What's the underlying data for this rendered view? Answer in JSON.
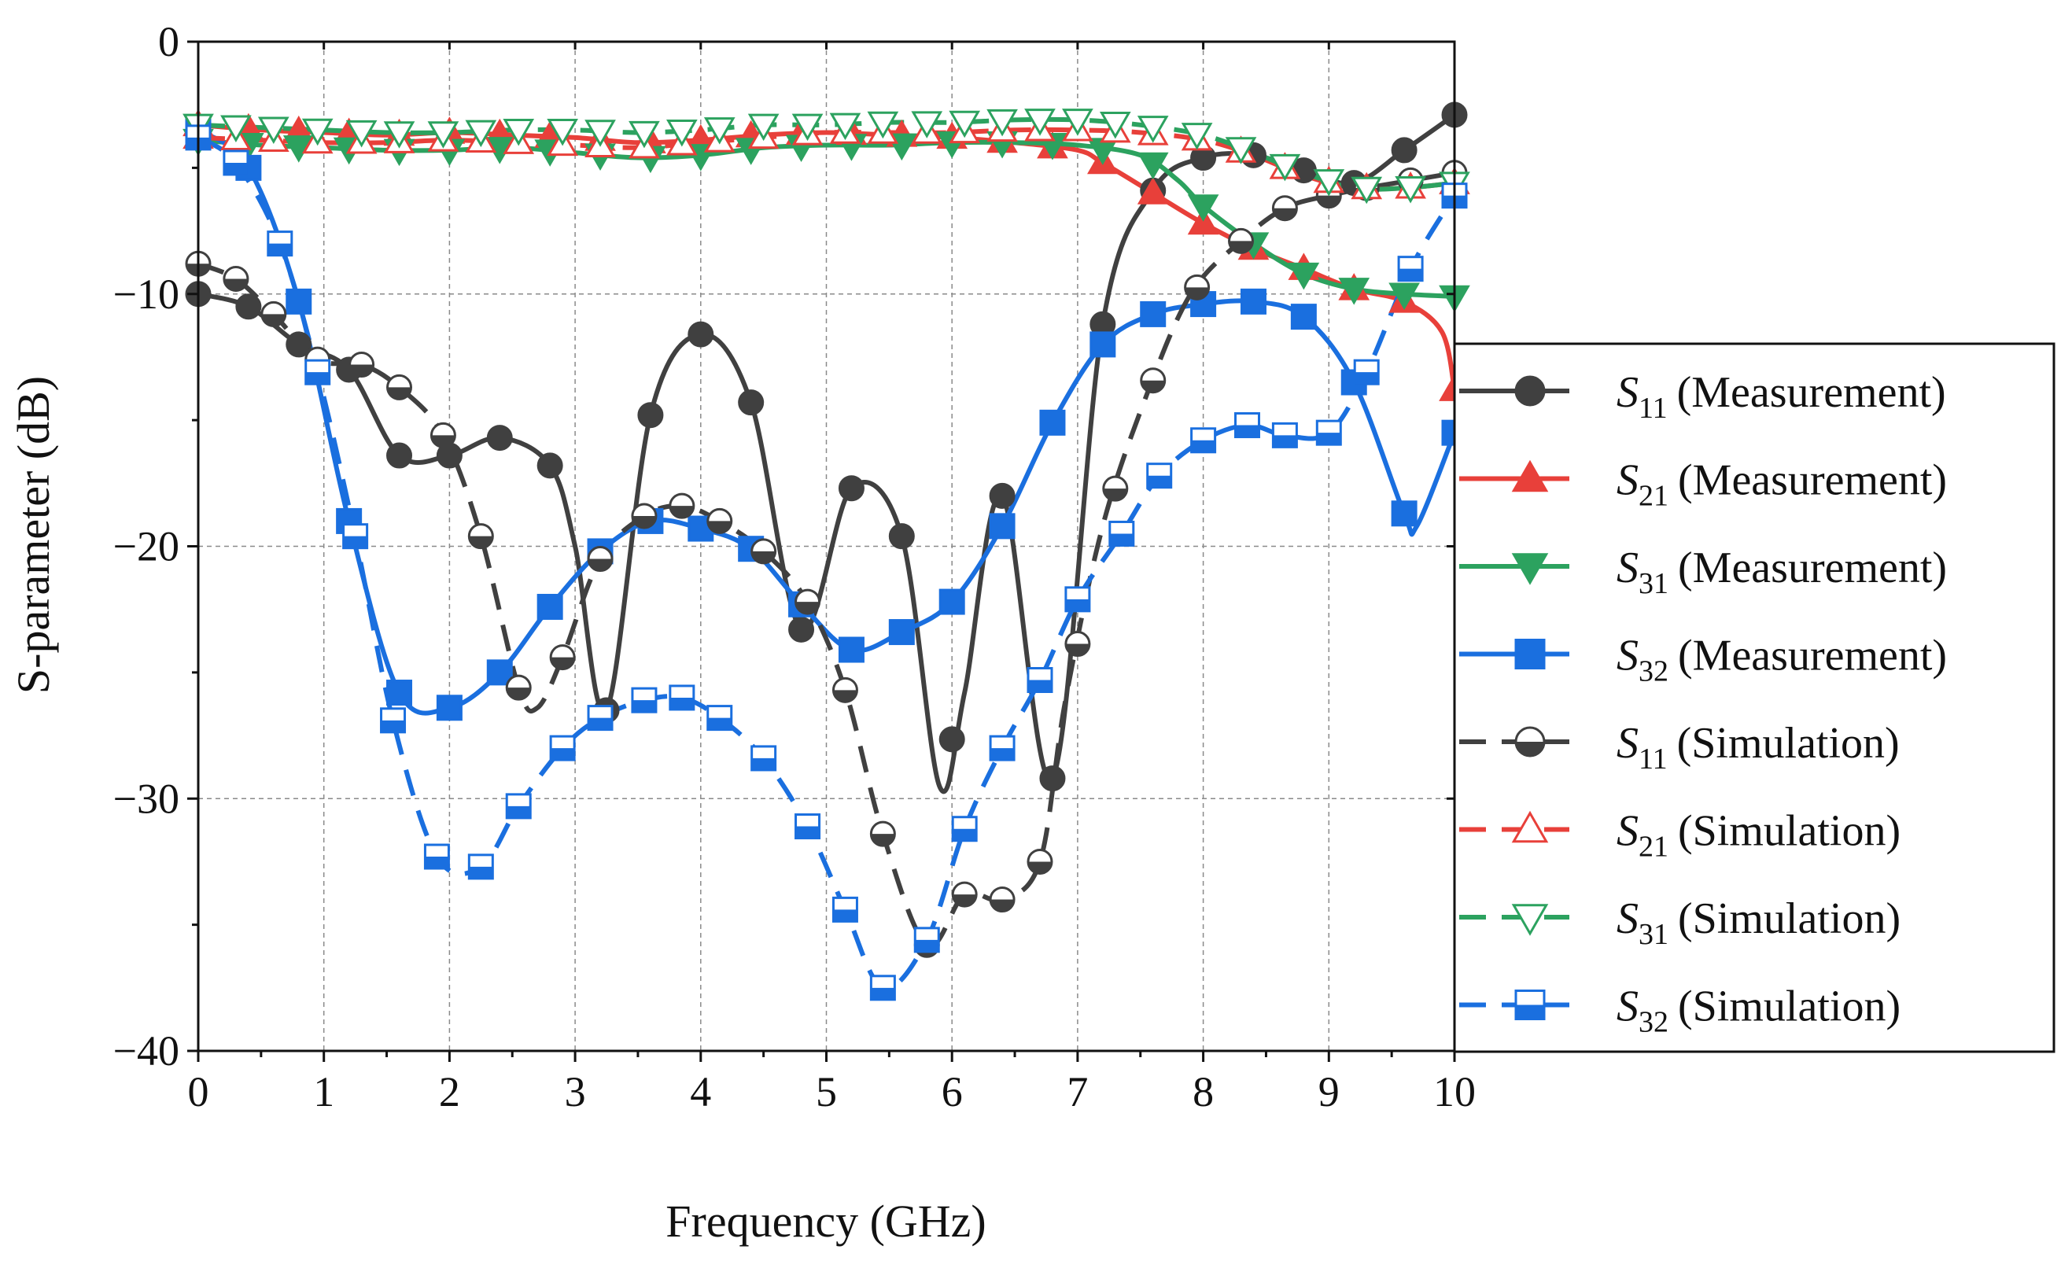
{
  "chart_data": {
    "type": "line",
    "title": "",
    "xlabel": "Frequency (GHz)",
    "ylabel": "S-parameter (dB)",
    "xlim": [
      0,
      10
    ],
    "ylim": [
      -40,
      0
    ],
    "xticks": [
      0,
      1,
      2,
      3,
      4,
      5,
      6,
      7,
      8,
      9,
      10
    ],
    "yticks": [
      0,
      -10,
      -20,
      -30,
      -40
    ],
    "xtick_labels": [
      "0",
      "1",
      "2",
      "3",
      "4",
      "5",
      "6",
      "7",
      "8",
      "9",
      "10"
    ],
    "ytick_labels": [
      "0",
      "−10",
      "−20",
      "−30",
      "−40"
    ],
    "grid": true,
    "legend_position": "right, outside plot area",
    "series": [
      {
        "name": "S11 (Measurement)",
        "sym": "S",
        "sub": "11",
        "kind": "(Measurement)",
        "color": "#404040",
        "dash": "solid",
        "marker": "circle",
        "fill": "full",
        "x": [
          0,
          0.4,
          0.8,
          1.2,
          1.6,
          2.0,
          2.4,
          2.8,
          3.0,
          3.25,
          3.6,
          4.0,
          4.4,
          4.8,
          5.2,
          5.6,
          5.9,
          6.1,
          6.4,
          6.8,
          7.2,
          7.6,
          8.0,
          8.4,
          8.8,
          9.2,
          9.6,
          10.0
        ],
        "y": [
          -10,
          -10.5,
          -12,
          -13,
          -16.4,
          -16.4,
          -15.7,
          -16.8,
          -20,
          -26.5,
          -14.8,
          -11.6,
          -14.3,
          -23.3,
          -17.7,
          -19.6,
          -29.5,
          -25.8,
          -18,
          -29.2,
          -11.2,
          -5.9,
          -4.6,
          -4.5,
          -5.1,
          -5.6,
          -4.3,
          -2.9
        ],
        "marker_x": [
          0,
          0.4,
          0.8,
          1.2,
          1.6,
          2.0,
          2.4,
          2.8,
          3.25,
          3.6,
          4.0,
          4.4,
          4.8,
          5.2,
          5.6,
          6.0,
          6.4,
          6.8,
          7.2,
          7.6,
          8.0,
          8.4,
          8.8,
          9.2,
          9.6,
          10.0
        ]
      },
      {
        "name": "S21 (Measurement)",
        "sym": "S",
        "sub": "21",
        "kind": "(Measurement)",
        "color": "#e8403a",
        "dash": "solid",
        "marker": "triangle-up",
        "fill": "full",
        "x": [
          0,
          0.5,
          1,
          1.5,
          2,
          2.5,
          3,
          3.5,
          4,
          4.5,
          5,
          5.5,
          6,
          6.5,
          7,
          7.2,
          7.6,
          8.0,
          8.4,
          8.8,
          9.2,
          9.6,
          9.9,
          10.0
        ],
        "y": [
          -3.3,
          -3.5,
          -3.6,
          -3.7,
          -3.6,
          -3.7,
          -3.8,
          -4.0,
          -3.9,
          -3.7,
          -3.6,
          -3.7,
          -3.8,
          -4.0,
          -4.3,
          -4.8,
          -6.0,
          -7.2,
          -8.2,
          -9.0,
          -9.8,
          -10.3,
          -11.5,
          -13.8
        ],
        "marker_x": [
          0,
          0.4,
          0.8,
          1.2,
          1.6,
          2.0,
          2.4,
          2.8,
          3.2,
          3.6,
          4.0,
          4.4,
          4.8,
          5.2,
          5.6,
          6.0,
          6.4,
          6.8,
          7.2,
          7.6,
          8.0,
          8.4,
          8.8,
          9.2,
          9.6,
          10.0
        ]
      },
      {
        "name": "S31 (Measurement)",
        "sym": "S",
        "sub": "31",
        "kind": "(Measurement)",
        "color": "#2ca25f",
        "dash": "solid",
        "marker": "triangle-down",
        "fill": "full",
        "x": [
          0,
          0.5,
          1,
          1.5,
          2,
          2.5,
          3,
          3.5,
          4,
          4.5,
          5,
          5.5,
          6,
          6.5,
          7,
          7.5,
          7.8,
          8.0,
          8.4,
          8.8,
          9.2,
          9.6,
          10.0
        ],
        "y": [
          -3.9,
          -4.1,
          -4.2,
          -4.3,
          -4.3,
          -4.2,
          -4.4,
          -4.6,
          -4.5,
          -4.2,
          -4.1,
          -4.1,
          -4.0,
          -4.0,
          -4.1,
          -4.5,
          -5.5,
          -6.5,
          -8.0,
          -9.2,
          -9.8,
          -10.0,
          -10.1
        ],
        "marker_x": [
          0,
          0.4,
          0.8,
          1.2,
          1.6,
          2.0,
          2.4,
          2.8,
          3.2,
          3.6,
          4.0,
          4.4,
          4.8,
          5.2,
          5.6,
          6.0,
          6.4,
          6.8,
          7.2,
          7.6,
          8.0,
          8.4,
          8.8,
          9.2,
          9.6,
          10.0
        ]
      },
      {
        "name": "S32 (Measurement)",
        "sym": "S",
        "sub": "32",
        "kind": "(Measurement)",
        "color": "#1a6fdf",
        "dash": "solid",
        "marker": "square",
        "fill": "full",
        "x": [
          0,
          0.4,
          0.8,
          1.2,
          1.6,
          2.0,
          2.4,
          2.8,
          3.2,
          3.6,
          4.0,
          4.4,
          4.8,
          5.2,
          5.6,
          6.0,
          6.4,
          6.8,
          7.2,
          7.6,
          8.0,
          8.4,
          8.8,
          9.2,
          9.6,
          9.7,
          10.0
        ],
        "y": [
          -3.5,
          -5,
          -10.3,
          -19,
          -25.8,
          -26.4,
          -25,
          -22.4,
          -20.2,
          -19,
          -19.3,
          -20.1,
          -22.3,
          -24.1,
          -23.4,
          -22.2,
          -19.2,
          -15.1,
          -12,
          -10.8,
          -10.4,
          -10.3,
          -10.9,
          -13.5,
          -18.7,
          -19.2,
          -15.5
        ],
        "marker_x": [
          0,
          0.4,
          0.8,
          1.2,
          1.6,
          2.0,
          2.4,
          2.8,
          3.2,
          3.6,
          4.0,
          4.4,
          4.8,
          5.2,
          5.6,
          6.0,
          6.4,
          6.8,
          7.2,
          7.6,
          8.0,
          8.4,
          8.8,
          9.2,
          9.6,
          10.0
        ]
      },
      {
        "name": "S11 (Simulation)",
        "sym": "S",
        "sub": "11",
        "kind": "(Simulation)",
        "color": "#404040",
        "dash": "dashed",
        "marker": "circle",
        "fill": "half",
        "x": [
          0,
          0.3,
          0.6,
          0.95,
          1.3,
          1.6,
          1.95,
          2.25,
          2.55,
          2.7,
          2.9,
          3.2,
          3.55,
          3.85,
          4.15,
          4.5,
          4.85,
          5.15,
          5.45,
          5.8,
          6.1,
          6.4,
          6.7,
          6.9,
          7.2,
          7.55,
          7.9,
          8.3,
          8.65,
          9.0,
          9.3,
          9.65,
          10.0
        ],
        "y": [
          -8.8,
          -9.4,
          -10.8,
          -12.6,
          -12.8,
          -13.7,
          -15.6,
          -19.6,
          -25.6,
          -26.4,
          -24.4,
          -20.5,
          -18.8,
          -18.4,
          -19,
          -20.2,
          -22.2,
          -25.7,
          -31.4,
          -35.8,
          -33.8,
          -34,
          -32.5,
          -26.2,
          -19.2,
          -14,
          -10,
          -7.9,
          -6.6,
          -6.1,
          -5.8,
          -5.5,
          -5.2
        ],
        "marker_x": [
          0,
          0.3,
          0.6,
          0.95,
          1.3,
          1.6,
          1.95,
          2.25,
          2.55,
          2.9,
          3.2,
          3.55,
          3.85,
          4.15,
          4.5,
          4.85,
          5.15,
          5.45,
          5.8,
          6.1,
          6.4,
          6.7,
          7.0,
          7.3,
          7.6,
          7.95,
          8.3,
          8.65,
          9.0,
          9.3,
          9.65,
          10.0
        ]
      },
      {
        "name": "S21 (Simulation)",
        "sym": "S",
        "sub": "21",
        "kind": "(Simulation)",
        "color": "#e8403a",
        "dash": "dashed",
        "marker": "triangle-up",
        "fill": "open",
        "x": [
          0,
          0.5,
          1,
          1.5,
          2,
          2.5,
          3,
          3.5,
          4,
          4.5,
          5,
          5.5,
          6,
          6.5,
          7,
          7.5,
          8.0,
          8.4,
          8.8,
          9.2,
          9.6,
          10.0
        ],
        "y": [
          -3.8,
          -3.9,
          -4.0,
          -4.0,
          -3.9,
          -4.0,
          -4.1,
          -4.2,
          -4.0,
          -3.8,
          -3.6,
          -3.6,
          -3.6,
          -3.5,
          -3.5,
          -3.6,
          -3.9,
          -4.5,
          -5.3,
          -5.8,
          -5.8,
          -5.6
        ],
        "marker_x": [
          0,
          0.3,
          0.6,
          0.95,
          1.3,
          1.6,
          1.95,
          2.25,
          2.55,
          2.9,
          3.2,
          3.55,
          3.85,
          4.15,
          4.5,
          4.85,
          5.15,
          5.45,
          5.8,
          6.1,
          6.4,
          6.7,
          7.0,
          7.3,
          7.6,
          7.95,
          8.3,
          8.65,
          9.0,
          9.3,
          9.65,
          10.0
        ]
      },
      {
        "name": "S31 (Simulation)",
        "sym": "S",
        "sub": "31",
        "kind": "(Simulation)",
        "color": "#2ca25f",
        "dash": "dashed",
        "marker": "triangle-down",
        "fill": "open",
        "x": [
          0,
          0.5,
          1,
          1.5,
          2,
          2.5,
          3,
          3.5,
          4,
          4.5,
          5,
          5.5,
          6,
          6.5,
          7,
          7.5,
          8.0,
          8.4,
          8.8,
          9.2,
          9.6,
          10.0
        ],
        "y": [
          -3.3,
          -3.4,
          -3.5,
          -3.6,
          -3.6,
          -3.5,
          -3.5,
          -3.6,
          -3.5,
          -3.3,
          -3.3,
          -3.2,
          -3.2,
          -3.1,
          -3.1,
          -3.3,
          -3.7,
          -4.4,
          -5.2,
          -5.8,
          -5.8,
          -5.6
        ],
        "marker_x": [
          0,
          0.3,
          0.6,
          0.95,
          1.3,
          1.6,
          1.95,
          2.25,
          2.55,
          2.9,
          3.2,
          3.55,
          3.85,
          4.15,
          4.5,
          4.85,
          5.15,
          5.45,
          5.8,
          6.1,
          6.4,
          6.7,
          7.0,
          7.3,
          7.6,
          7.95,
          8.3,
          8.65,
          9.0,
          9.3,
          9.65,
          10.0
        ]
      },
      {
        "name": "S32 (Simulation)",
        "sym": "S",
        "sub": "32",
        "kind": "(Simulation)",
        "color": "#1a6fdf",
        "dash": "dashed",
        "marker": "square",
        "fill": "half",
        "x": [
          0,
          0.3,
          0.65,
          0.95,
          1.25,
          1.55,
          1.9,
          2.25,
          2.55,
          2.9,
          3.2,
          3.55,
          3.85,
          4.15,
          4.5,
          4.85,
          5.15,
          5.45,
          5.8,
          6.1,
          6.4,
          6.7,
          7.0,
          7.35,
          7.65,
          8.0,
          8.35,
          8.65,
          9.0,
          9.3,
          9.65,
          10.0
        ],
        "y": [
          -3.8,
          -4.8,
          -8,
          -13.1,
          -19.6,
          -26.9,
          -32.3,
          -32.7,
          -30.3,
          -28,
          -26.8,
          -26.1,
          -26,
          -26.8,
          -28.4,
          -31.1,
          -34.4,
          -37.5,
          -35.6,
          -31.2,
          -28,
          -25.3,
          -22.1,
          -19.5,
          -17.2,
          -15.8,
          -15.2,
          -15.6,
          -15.5,
          -13.1,
          -9.0,
          -6.1
        ],
        "marker_x": [
          0,
          0.3,
          0.65,
          0.95,
          1.25,
          1.55,
          1.9,
          2.25,
          2.55,
          2.9,
          3.2,
          3.55,
          3.85,
          4.15,
          4.5,
          4.85,
          5.15,
          5.45,
          5.8,
          6.1,
          6.4,
          6.7,
          7.0,
          7.35,
          7.65,
          8.0,
          8.35,
          8.65,
          9.0,
          9.3,
          9.65,
          10.0
        ]
      }
    ]
  }
}
